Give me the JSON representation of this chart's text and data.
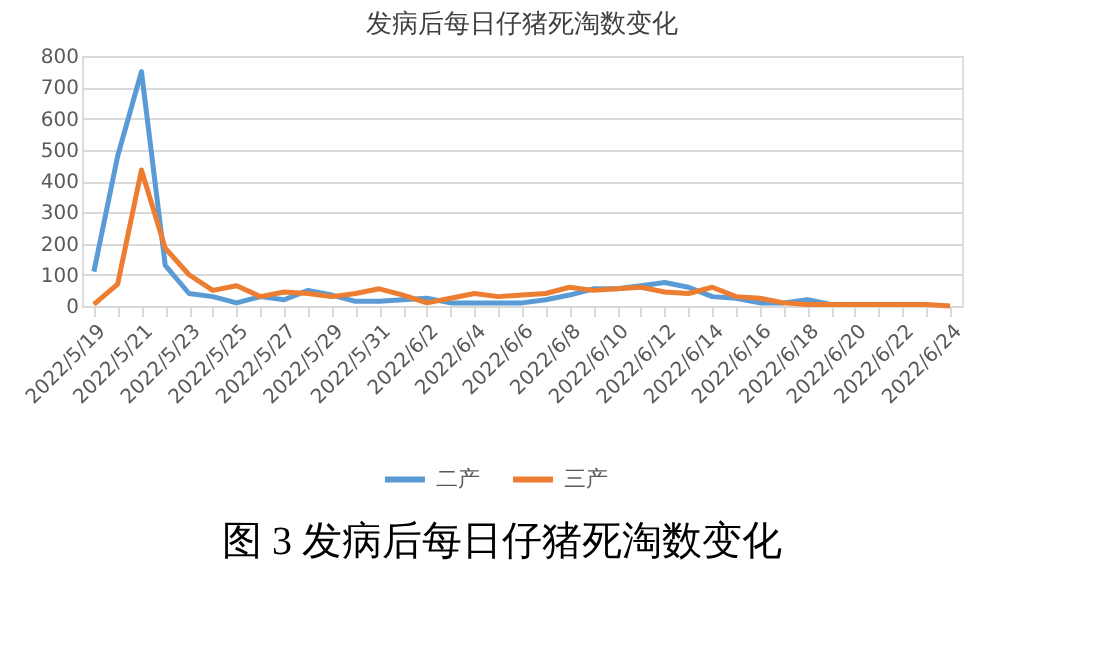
{
  "chart_data": {
    "type": "line",
    "title": "发病后每日仔猪死淘数变化",
    "categories": [
      "2022/5/19",
      null,
      "2022/5/21",
      null,
      "2022/5/23",
      null,
      "2022/5/25",
      null,
      "2022/5/27",
      null,
      "2022/5/29",
      null,
      "2022/5/31",
      null,
      "2022/6/2",
      null,
      "2022/6/4",
      null,
      "2022/6/6",
      null,
      "2022/6/8",
      null,
      "2022/6/10",
      null,
      "2022/6/12",
      null,
      "2022/6/14",
      null,
      "2022/6/16",
      null,
      "2022/6/18",
      null,
      "2022/6/20",
      null,
      "2022/6/22",
      null,
      "2022/6/24"
    ],
    "series": [
      {
        "name": "二产",
        "color": "#5b9bd5",
        "values": [
          110,
          480,
          750,
          130,
          40,
          30,
          10,
          30,
          20,
          50,
          35,
          15,
          15,
          20,
          25,
          10,
          10,
          10,
          10,
          20,
          35,
          55,
          55,
          65,
          75,
          60,
          30,
          25,
          10,
          10,
          20,
          5,
          5,
          null,
          null,
          null,
          null
        ]
      },
      {
        "name": "三产",
        "color": "#ed7d31",
        "values": [
          5,
          70,
          435,
          185,
          100,
          50,
          65,
          30,
          45,
          40,
          30,
          40,
          55,
          35,
          10,
          25,
          40,
          30,
          35,
          40,
          60,
          50,
          55,
          60,
          45,
          40,
          60,
          30,
          25,
          10,
          5,
          5,
          5,
          5,
          5,
          5,
          0
        ]
      }
    ],
    "ylim": [
      0,
      800
    ],
    "yticks": [
      0,
      100,
      200,
      300,
      400,
      500,
      600,
      700,
      800
    ],
    "grid": "y",
    "legend": "bottom",
    "line_style": "solid",
    "marker": "none",
    "annotations": [
      "图 3 发病后每日仔猪死淘数变化"
    ]
  }
}
